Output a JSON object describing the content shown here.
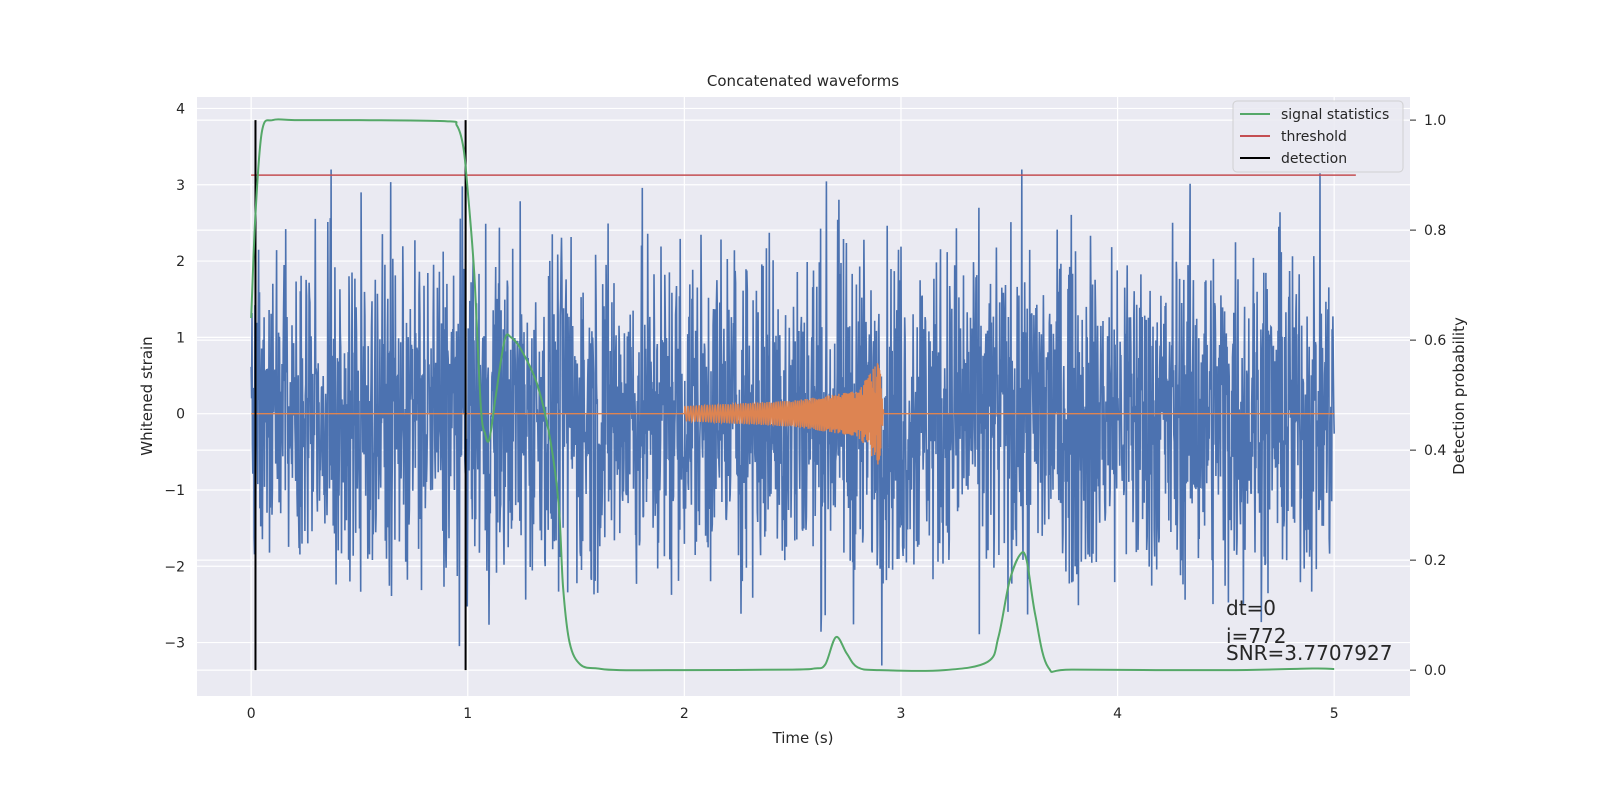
{
  "chart_data": {
    "type": "line",
    "title": "Concatenated waveforms",
    "xlabel": "Time (s)",
    "ylabel": "Whitened strain",
    "ylabel_right": "Detection probability",
    "xlim": [
      -0.25,
      5.35
    ],
    "ylim": [
      -3.7,
      4.15
    ],
    "ylim_right": [
      -0.047,
      1.042
    ],
    "x_ticks": [
      "0",
      "1",
      "2",
      "3",
      "4",
      "5"
    ],
    "x_tick_values": [
      0,
      1,
      2,
      3,
      4,
      5
    ],
    "y_ticks": [
      "4",
      "3",
      "2",
      "1",
      "0",
      "−1",
      "−2",
      "−3"
    ],
    "y_tick_values": [
      4,
      3,
      2,
      1,
      0,
      -1,
      -2,
      -3
    ],
    "y_right_ticks": [
      "1.0",
      "0.8",
      "0.6",
      "0.4",
      "0.2",
      "0.0"
    ],
    "y_right_tick_values": [
      1.0,
      0.8,
      0.6,
      0.4,
      0.2,
      0.0
    ],
    "grid": true,
    "legend_position": "top-right",
    "series": [
      {
        "name": "",
        "axis": "left",
        "color": "#4c72b0",
        "kind": "noise",
        "x_range": [
          0,
          5
        ],
        "amplitude_approx": [
          -3.3,
          3.2
        ]
      },
      {
        "name": "",
        "axis": "left",
        "color": "#dd8452",
        "kind": "chirp",
        "x": [
          0,
          2.0,
          2.5,
          2.8,
          2.9,
          2.92,
          5.0
        ],
        "envelope": [
          0,
          0.1,
          0.17,
          0.3,
          0.7,
          0,
          0
        ]
      },
      {
        "name": "signal statistics",
        "axis": "right",
        "color": "#55a868",
        "x": [
          0,
          0.02,
          0.05,
          0.1,
          0.2,
          0.5,
          0.9,
          0.95,
          0.98,
          1.0,
          1.03,
          1.06,
          1.08,
          1.1,
          1.13,
          1.17,
          1.2,
          1.25,
          1.32,
          1.38,
          1.42,
          1.44,
          1.47,
          1.52,
          1.6,
          1.7,
          2.0,
          2.5,
          2.6,
          2.65,
          2.7,
          2.75,
          2.8,
          2.9,
          3.2,
          3.4,
          3.45,
          3.5,
          3.55,
          3.58,
          3.62,
          3.68,
          3.8,
          4.5,
          4.9,
          5.0
        ],
        "values": [
          0.64,
          0.83,
          0.98,
          1.0,
          1.0,
          1.0,
          0.998,
          0.99,
          0.95,
          0.87,
          0.72,
          0.48,
          0.43,
          0.42,
          0.5,
          0.6,
          0.605,
          0.58,
          0.52,
          0.42,
          0.3,
          0.15,
          0.05,
          0.01,
          0.003,
          0.0,
          0.0,
          0.001,
          0.003,
          0.01,
          0.06,
          0.03,
          0.005,
          0.0,
          0.0,
          0.015,
          0.06,
          0.16,
          0.21,
          0.2,
          0.1,
          0.005,
          0.001,
          0.0,
          0.003,
          0.002
        ]
      },
      {
        "name": "threshold",
        "axis": "right",
        "color": "#c44e52",
        "x": [
          0,
          5.1
        ],
        "values": [
          0.9,
          0.9
        ]
      },
      {
        "name": "detection",
        "axis": "right",
        "color": "#000000",
        "kind": "vlines",
        "x": [
          0.02,
          0.99
        ],
        "ymin": 0.0,
        "ymax": 1.0
      }
    ],
    "legend": [
      {
        "label": "signal statistics",
        "color": "#55a868"
      },
      {
        "label": "threshold",
        "color": "#c44e52"
      },
      {
        "label": "detection",
        "color": "#000000"
      }
    ],
    "annotations": [
      "dt=0",
      "i=772",
      "SNR=3.7707927"
    ],
    "colors": {
      "background": "#eaeaf2",
      "grid": "#ffffff",
      "noise": "#4c72b0",
      "chirp": "#dd8452"
    }
  }
}
